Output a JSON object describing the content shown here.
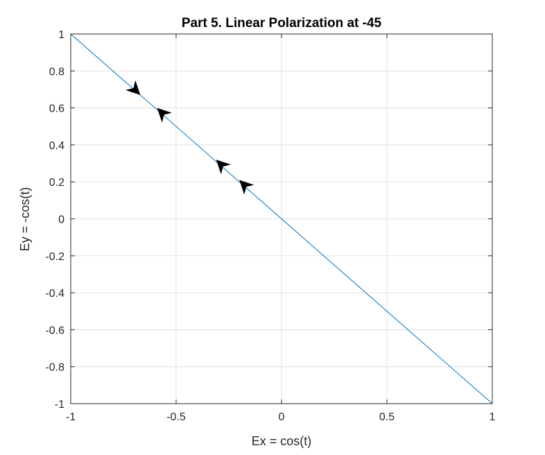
{
  "chart_data": {
    "type": "line",
    "title": "Part 5. Linear Polarization at -45",
    "xlabel": "Ex = cos(t)",
    "ylabel": "Ey = -cos(t)",
    "xlim": [
      -1,
      1
    ],
    "ylim": [
      -1,
      1
    ],
    "xticks": [
      -1,
      -0.5,
      0,
      0.5,
      1
    ],
    "xtick_labels": [
      "-1",
      "-0.5",
      "0",
      "0.5",
      "1"
    ],
    "yticks": [
      -1,
      -0.8,
      -0.6,
      -0.4,
      -0.2,
      0,
      0.2,
      0.4,
      0.6,
      0.8,
      1
    ],
    "ytick_labels": [
      "-1",
      "-0.8",
      "-0.6",
      "-0.4",
      "-0.2",
      "0",
      "0.2",
      "0.4",
      "0.6",
      "0.8",
      "1"
    ],
    "grid": true,
    "series": [
      {
        "color": "#0072BD",
        "x": [
          -1,
          1
        ],
        "y": [
          1,
          -1
        ]
      }
    ],
    "arrows": [
      {
        "x": -0.67,
        "y": 0.67,
        "direction": [
          1,
          -1
        ]
      },
      {
        "x": -0.59,
        "y": 0.6,
        "direction": [
          -1,
          1
        ]
      },
      {
        "x": -0.31,
        "y": 0.32,
        "direction": [
          -1,
          1
        ]
      },
      {
        "x": -0.2,
        "y": 0.21,
        "direction": [
          -1,
          1
        ]
      }
    ],
    "arrow_color": "#000000"
  }
}
